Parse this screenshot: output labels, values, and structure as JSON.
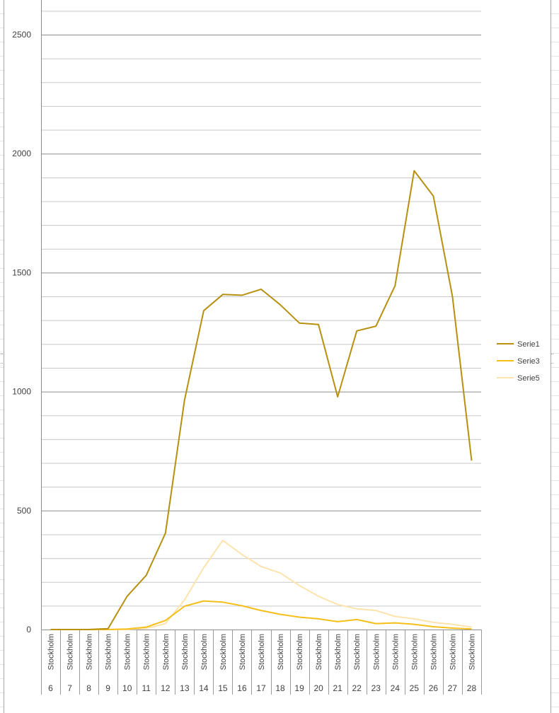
{
  "chart_data": {
    "type": "line",
    "categories": [
      {
        "label": "Stockholm",
        "week": "6"
      },
      {
        "label": "Stockholm",
        "week": "7"
      },
      {
        "label": "Stockholm",
        "week": "8"
      },
      {
        "label": "Stockholm",
        "week": "9"
      },
      {
        "label": "Stockholm",
        "week": "10"
      },
      {
        "label": "Stockholm",
        "week": "11"
      },
      {
        "label": "Stockholm",
        "week": "12"
      },
      {
        "label": "Stockholm",
        "week": "13"
      },
      {
        "label": "Stockholm",
        "week": "14"
      },
      {
        "label": "Stockholm",
        "week": "15"
      },
      {
        "label": "Stockholm",
        "week": "16"
      },
      {
        "label": "Stockholm",
        "week": "17"
      },
      {
        "label": "Stockholm",
        "week": "18"
      },
      {
        "label": "Stockholm",
        "week": "19"
      },
      {
        "label": "Stockholm",
        "week": "20"
      },
      {
        "label": "Stockholm",
        "week": "21"
      },
      {
        "label": "Stockholm",
        "week": "22"
      },
      {
        "label": "Stockholm",
        "week": "23"
      },
      {
        "label": "Stockholm",
        "week": "24"
      },
      {
        "label": "Stockholm",
        "week": "25"
      },
      {
        "label": "Stockholm",
        "week": "26"
      },
      {
        "label": "Stockholm",
        "week": "27"
      },
      {
        "label": "Stockholm",
        "week": "28"
      }
    ],
    "series": [
      {
        "name": "Serie1",
        "color": "#b8900f",
        "values": [
          0,
          0,
          0,
          4,
          140,
          228,
          405,
          965,
          1340,
          1408,
          1405,
          1430,
          1365,
          1288,
          1282,
          978,
          1255,
          1275,
          1445,
          1928,
          1822,
          1400,
          710
        ]
      },
      {
        "name": "Serie3",
        "color": "#f5bf1a",
        "values": [
          0,
          0,
          0,
          0,
          2,
          10,
          38,
          98,
          120,
          115,
          100,
          80,
          64,
          52,
          45,
          33,
          42,
          25,
          28,
          22,
          12,
          6,
          2
        ]
      },
      {
        "name": "Serie5",
        "color": "#fde3ad",
        "values": [
          0,
          0,
          0,
          0,
          0,
          5,
          25,
          125,
          260,
          375,
          315,
          265,
          238,
          185,
          140,
          105,
          87,
          80,
          55,
          45,
          30,
          22,
          10
        ]
      }
    ],
    "y_ticks": [
      "0",
      "500",
      "1000",
      "1500",
      "2000",
      "2500"
    ],
    "ylim": [
      0,
      2600
    ],
    "y_major_step": 500,
    "y_minor_step": 100,
    "grid": true,
    "legend_position": "right"
  }
}
